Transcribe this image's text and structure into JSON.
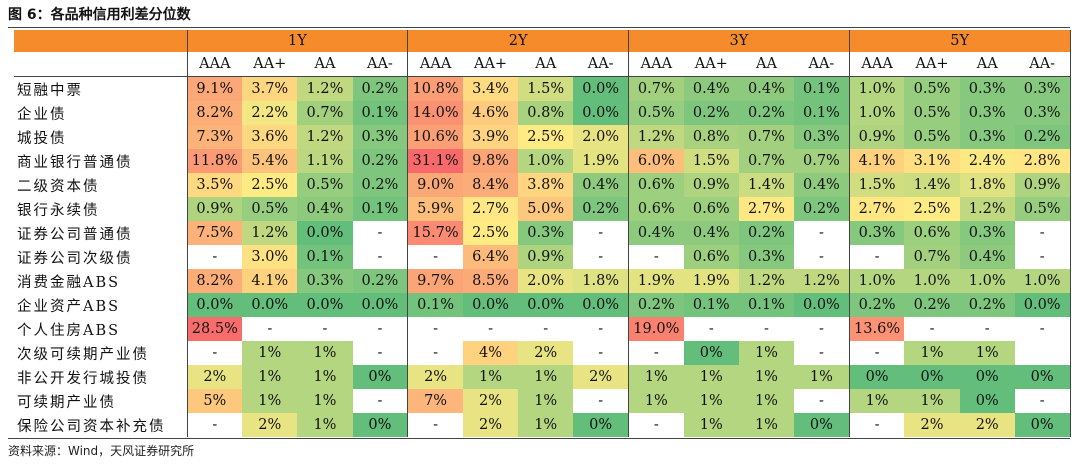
{
  "title": "图 6：各品种信用利差分位数",
  "source": "资料来源：Wind，天风证券研究所",
  "groups": [
    "1Y",
    "2Y",
    "3Y",
    "5Y"
  ],
  "subheaders": [
    "AAA",
    "AA+",
    "AA",
    "AA-"
  ],
  "rows": [
    {
      "label": "短融中票",
      "values": [
        "9.1%",
        "3.7%",
        "1.2%",
        "0.2%",
        "10.8%",
        "3.4%",
        "1.5%",
        "0.0%",
        "0.7%",
        "0.4%",
        "0.4%",
        "0.1%",
        "1.0%",
        "0.5%",
        "0.3%",
        "0.3%"
      ]
    },
    {
      "label": "企业债",
      "values": [
        "8.2%",
        "2.2%",
        "0.7%",
        "0.1%",
        "14.0%",
        "4.6%",
        "0.8%",
        "0.0%",
        "0.5%",
        "0.2%",
        "0.2%",
        "0.1%",
        "1.0%",
        "0.5%",
        "0.3%",
        "0.3%"
      ]
    },
    {
      "label": "城投债",
      "values": [
        "7.3%",
        "3.6%",
        "1.2%",
        "0.3%",
        "10.6%",
        "3.9%",
        "2.5%",
        "2.0%",
        "1.2%",
        "0.8%",
        "0.7%",
        "0.3%",
        "0.9%",
        "0.5%",
        "0.3%",
        "0.2%"
      ]
    },
    {
      "label": "商业银行普通债",
      "values": [
        "11.8%",
        "5.4%",
        "1.1%",
        "0.2%",
        "31.1%",
        "9.8%",
        "1.0%",
        "1.9%",
        "6.0%",
        "1.5%",
        "0.7%",
        "0.7%",
        "4.1%",
        "3.1%",
        "2.4%",
        "2.8%"
      ]
    },
    {
      "label": "二级资本债",
      "values": [
        "3.5%",
        "2.5%",
        "0.5%",
        "0.2%",
        "9.0%",
        "8.4%",
        "3.8%",
        "0.4%",
        "0.6%",
        "0.9%",
        "1.4%",
        "0.4%",
        "1.5%",
        "1.4%",
        "1.8%",
        "0.9%"
      ]
    },
    {
      "label": "银行永续债",
      "values": [
        "0.9%",
        "0.5%",
        "0.4%",
        "0.1%",
        "5.9%",
        "2.7%",
        "5.0%",
        "0.2%",
        "0.6%",
        "0.6%",
        "2.7%",
        "0.2%",
        "2.7%",
        "2.5%",
        "1.2%",
        "0.5%"
      ]
    },
    {
      "label": "证券公司普通债",
      "values": [
        "7.5%",
        "1.2%",
        "0.0%",
        "-",
        "15.7%",
        "2.5%",
        "0.3%",
        "-",
        "0.4%",
        "0.4%",
        "0.2%",
        "-",
        "0.3%",
        "0.6%",
        "0.3%",
        "-"
      ]
    },
    {
      "label": "证券公司次级债",
      "values": [
        "-",
        "3.0%",
        "0.1%",
        "-",
        "-",
        "6.4%",
        "0.9%",
        "-",
        "-",
        "0.6%",
        "0.3%",
        "-",
        "-",
        "0.7%",
        "0.4%",
        "-"
      ]
    },
    {
      "label": "消费金融ABS",
      "values": [
        "8.2%",
        "4.1%",
        "0.3%",
        "0.2%",
        "9.7%",
        "8.5%",
        "2.0%",
        "1.8%",
        "1.9%",
        "1.9%",
        "1.2%",
        "1.2%",
        "1.0%",
        "1.0%",
        "1.0%",
        "1.0%"
      ]
    },
    {
      "label": "企业资产ABS",
      "values": [
        "0.0%",
        "0.0%",
        "0.0%",
        "0.0%",
        "0.1%",
        "0.0%",
        "0.0%",
        "0.0%",
        "0.2%",
        "0.1%",
        "0.1%",
        "0.0%",
        "0.2%",
        "0.2%",
        "0.2%",
        "0.0%"
      ]
    },
    {
      "label": "个人住房ABS",
      "values": [
        "28.5%",
        "-",
        "-",
        "-",
        "-",
        "-",
        "-",
        "-",
        "19.0%",
        "-",
        "-",
        "-",
        "13.6%",
        "-",
        "-",
        "-"
      ]
    },
    {
      "label": "次级可续期产业债",
      "values": [
        "-",
        "1%",
        "1%",
        "-",
        "-",
        "4%",
        "2%",
        "-",
        "-",
        "0%",
        "1%",
        "-",
        "-",
        "1%",
        "1%",
        ""
      ]
    },
    {
      "label": "非公开发行城投债",
      "values": [
        "2%",
        "1%",
        "1%",
        "0%",
        "2%",
        "1%",
        "1%",
        "2%",
        "1%",
        "1%",
        "1%",
        "1%",
        "0%",
        "0%",
        "0%",
        "0%"
      ]
    },
    {
      "label": "可续期产业债",
      "values": [
        "5%",
        "1%",
        "1%",
        "-",
        "7%",
        "2%",
        "1%",
        "-",
        "1%",
        "1%",
        "1%",
        "-",
        "1%",
        "1%",
        "0%",
        "-"
      ]
    },
    {
      "label": "保险公司资本补充债",
      "values": [
        "-",
        "2%",
        "1%",
        "0%",
        "-",
        "2%",
        "1%",
        "0%",
        "-",
        "1%",
        "1%",
        "0%",
        "-",
        "2%",
        "2%",
        "0%"
      ]
    }
  ],
  "colors": {
    "header_bg": "#f58b2b",
    "scale_low": "#63be7b",
    "scale_mid": "#ffeb84",
    "scale_high": "#f8696b"
  }
}
